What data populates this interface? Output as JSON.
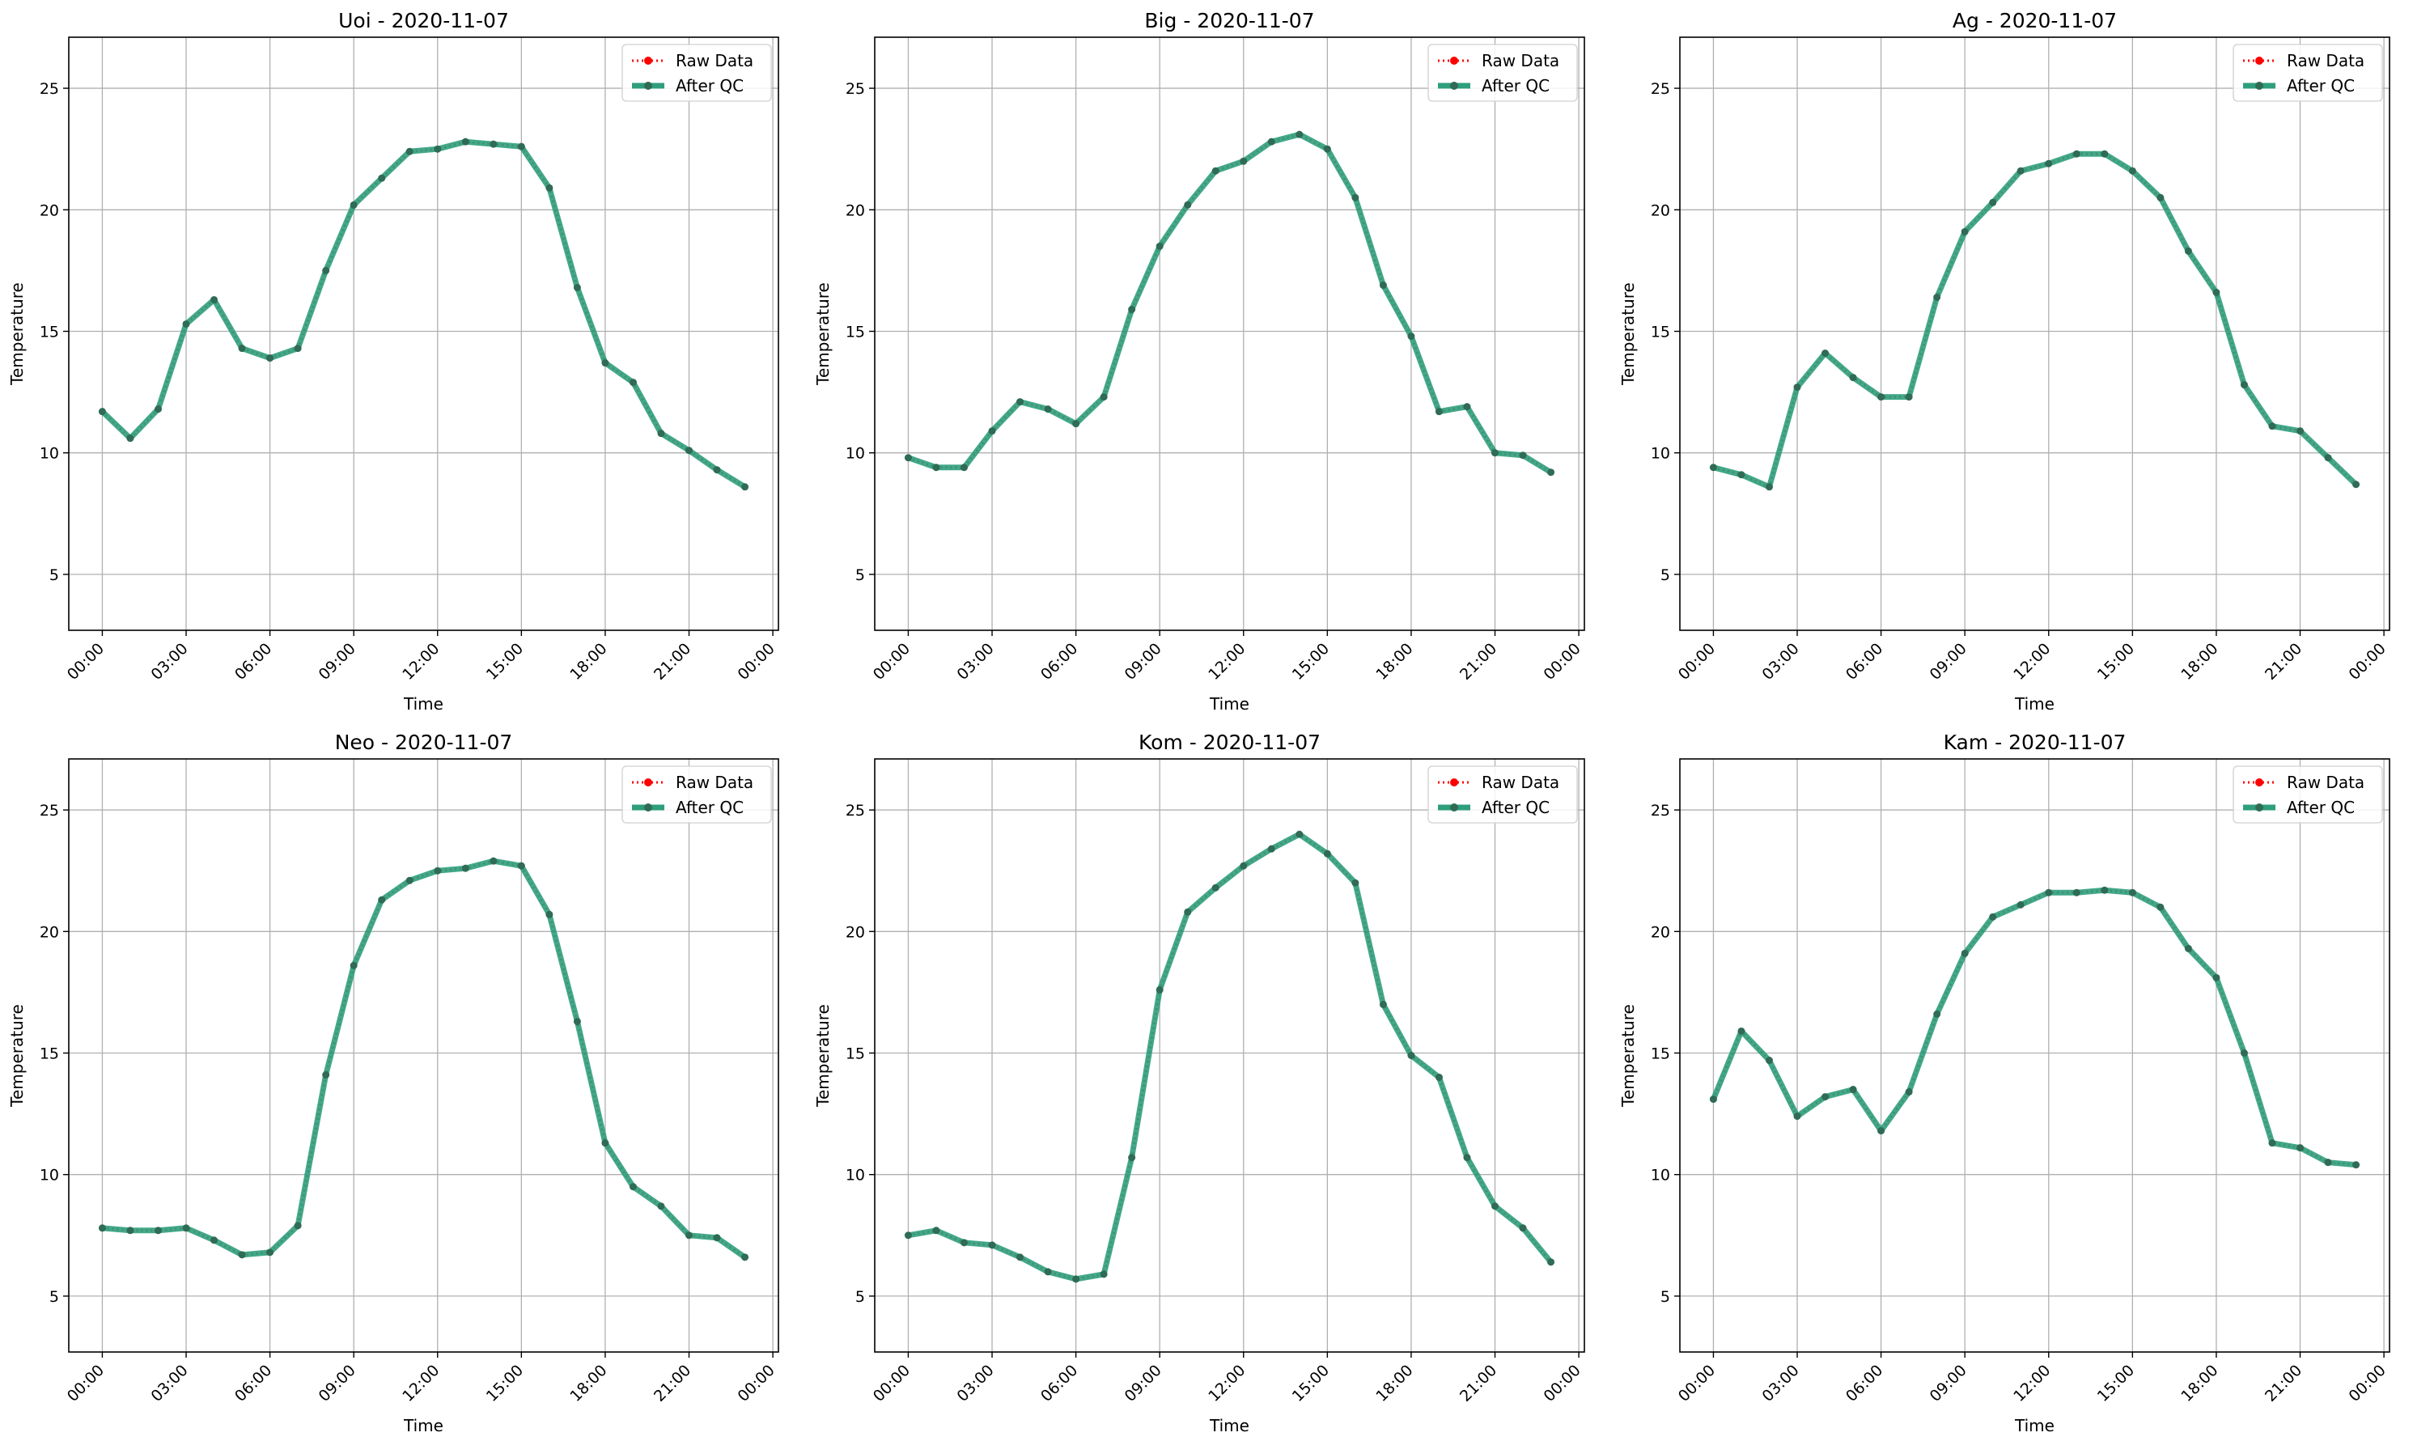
{
  "figure": {
    "date": "2020-11-07"
  },
  "colors": {
    "raw": "#ff0000",
    "qc": "#2e9e7c",
    "qc_dot": "#2f6b55",
    "grid": "#b0b0b0",
    "axis": "#000000"
  },
  "chart_data": [
    {
      "type": "line",
      "title": "Uoi - 2020-11-07",
      "xlabel": "Time",
      "ylabel": "Temperature",
      "x_ticks": [
        "00:00",
        "03:00",
        "06:00",
        "09:00",
        "12:00",
        "15:00",
        "18:00",
        "21:00",
        "00:00"
      ],
      "x_tick_hours": [
        0,
        3,
        6,
        9,
        12,
        15,
        18,
        21,
        24
      ],
      "xlim_hours": [
        -1.2,
        24.2
      ],
      "y_ticks": [
        5,
        10,
        15,
        20,
        25
      ],
      "ylim": [
        2.7,
        27.1
      ],
      "grid": true,
      "legend": {
        "placement": "top-right",
        "entries": [
          "Raw Data",
          "After QC"
        ]
      },
      "x_hours": [
        0,
        1,
        2,
        3,
        4,
        5,
        6,
        7,
        8,
        9,
        10,
        11,
        12,
        13,
        14,
        15,
        16,
        17,
        18,
        19,
        20,
        21,
        22,
        23
      ],
      "series": [
        {
          "name": "Raw Data",
          "values": [
            11.7,
            10.6,
            11.8,
            15.3,
            16.3,
            14.3,
            13.9,
            14.3,
            17.5,
            20.2,
            21.3,
            22.4,
            22.5,
            22.8,
            22.7,
            22.6,
            20.9,
            16.8,
            13.7,
            12.9,
            10.8,
            10.1,
            9.3,
            8.6
          ]
        },
        {
          "name": "After QC",
          "values": [
            11.7,
            10.6,
            11.8,
            15.3,
            16.3,
            14.3,
            13.9,
            14.3,
            17.5,
            20.2,
            21.3,
            22.4,
            22.5,
            22.8,
            22.7,
            22.6,
            20.9,
            16.8,
            13.7,
            12.9,
            10.8,
            10.1,
            9.3,
            8.6
          ]
        }
      ]
    },
    {
      "type": "line",
      "title": "Big - 2020-11-07",
      "xlabel": "Time",
      "ylabel": "Temperature",
      "x_ticks": [
        "00:00",
        "03:00",
        "06:00",
        "09:00",
        "12:00",
        "15:00",
        "18:00",
        "21:00",
        "00:00"
      ],
      "x_tick_hours": [
        0,
        3,
        6,
        9,
        12,
        15,
        18,
        21,
        24
      ],
      "xlim_hours": [
        -1.2,
        24.2
      ],
      "y_ticks": [
        5,
        10,
        15,
        20,
        25
      ],
      "ylim": [
        2.7,
        27.1
      ],
      "grid": true,
      "legend": {
        "placement": "top-right",
        "entries": [
          "Raw Data",
          "After QC"
        ]
      },
      "x_hours": [
        0,
        1,
        2,
        3,
        4,
        5,
        6,
        7,
        8,
        9,
        10,
        11,
        12,
        13,
        14,
        15,
        16,
        17,
        18,
        19,
        20,
        21,
        22,
        23
      ],
      "series": [
        {
          "name": "Raw Data",
          "values": [
            9.8,
            9.4,
            9.4,
            10.9,
            12.1,
            11.8,
            11.2,
            12.3,
            15.9,
            18.5,
            20.2,
            21.6,
            22.0,
            22.8,
            23.1,
            22.5,
            20.5,
            16.9,
            14.8,
            11.7,
            11.9,
            10.0,
            9.9,
            9.2
          ]
        },
        {
          "name": "After QC",
          "values": [
            9.8,
            9.4,
            9.4,
            10.9,
            12.1,
            11.8,
            11.2,
            12.3,
            15.9,
            18.5,
            20.2,
            21.6,
            22.0,
            22.8,
            23.1,
            22.5,
            20.5,
            16.9,
            14.8,
            11.7,
            11.9,
            10.0,
            9.9,
            9.2
          ]
        }
      ]
    },
    {
      "type": "line",
      "title": "Ag - 2020-11-07",
      "xlabel": "Time",
      "ylabel": "Temperature",
      "x_ticks": [
        "00:00",
        "03:00",
        "06:00",
        "09:00",
        "12:00",
        "15:00",
        "18:00",
        "21:00",
        "00:00"
      ],
      "x_tick_hours": [
        0,
        3,
        6,
        9,
        12,
        15,
        18,
        21,
        24
      ],
      "xlim_hours": [
        -1.2,
        24.2
      ],
      "y_ticks": [
        5,
        10,
        15,
        20,
        25
      ],
      "ylim": [
        2.7,
        27.1
      ],
      "grid": true,
      "legend": {
        "placement": "top-right",
        "entries": [
          "Raw Data",
          "After QC"
        ]
      },
      "x_hours": [
        0,
        1,
        2,
        3,
        4,
        5,
        6,
        7,
        8,
        9,
        10,
        11,
        12,
        13,
        14,
        15,
        16,
        17,
        18,
        19,
        20,
        21,
        22,
        23
      ],
      "series": [
        {
          "name": "Raw Data",
          "values": [
            9.4,
            9.1,
            8.6,
            12.7,
            14.1,
            13.1,
            12.3,
            12.3,
            16.4,
            19.1,
            20.3,
            21.6,
            21.9,
            22.3,
            22.3,
            21.6,
            20.5,
            18.3,
            16.6,
            12.8,
            11.1,
            10.9,
            9.8,
            8.7
          ]
        },
        {
          "name": "After QC",
          "values": [
            9.4,
            9.1,
            8.6,
            12.7,
            14.1,
            13.1,
            12.3,
            12.3,
            16.4,
            19.1,
            20.3,
            21.6,
            21.9,
            22.3,
            22.3,
            21.6,
            20.5,
            18.3,
            16.6,
            12.8,
            11.1,
            10.9,
            9.8,
            8.7
          ]
        }
      ]
    },
    {
      "type": "line",
      "title": "Neo - 2020-11-07",
      "xlabel": "Time",
      "ylabel": "Temperature",
      "x_ticks": [
        "00:00",
        "03:00",
        "06:00",
        "09:00",
        "12:00",
        "15:00",
        "18:00",
        "21:00",
        "00:00"
      ],
      "x_tick_hours": [
        0,
        3,
        6,
        9,
        12,
        15,
        18,
        21,
        24
      ],
      "xlim_hours": [
        -1.2,
        24.2
      ],
      "y_ticks": [
        5,
        10,
        15,
        20,
        25
      ],
      "ylim": [
        2.7,
        27.1
      ],
      "grid": true,
      "legend": {
        "placement": "top-right",
        "entries": [
          "Raw Data",
          "After QC"
        ]
      },
      "x_hours": [
        0,
        1,
        2,
        3,
        4,
        5,
        6,
        7,
        8,
        9,
        10,
        11,
        12,
        13,
        14,
        15,
        16,
        17,
        18,
        19,
        20,
        21,
        22,
        23
      ],
      "series": [
        {
          "name": "Raw Data",
          "values": [
            7.8,
            7.7,
            7.7,
            7.8,
            7.3,
            6.7,
            6.8,
            7.9,
            14.1,
            18.6,
            21.3,
            22.1,
            22.5,
            22.6,
            22.9,
            22.7,
            20.7,
            16.3,
            11.3,
            9.5,
            8.7,
            7.5,
            7.4,
            6.6
          ]
        },
        {
          "name": "After QC",
          "values": [
            7.8,
            7.7,
            7.7,
            7.8,
            7.3,
            6.7,
            6.8,
            7.9,
            14.1,
            18.6,
            21.3,
            22.1,
            22.5,
            22.6,
            22.9,
            22.7,
            20.7,
            16.3,
            11.3,
            9.5,
            8.7,
            7.5,
            7.4,
            6.6
          ]
        }
      ]
    },
    {
      "type": "line",
      "title": "Kom - 2020-11-07",
      "xlabel": "Time",
      "ylabel": "Temperature",
      "x_ticks": [
        "00:00",
        "03:00",
        "06:00",
        "09:00",
        "12:00",
        "15:00",
        "18:00",
        "21:00",
        "00:00"
      ],
      "x_tick_hours": [
        0,
        3,
        6,
        9,
        12,
        15,
        18,
        21,
        24
      ],
      "xlim_hours": [
        -1.2,
        24.2
      ],
      "y_ticks": [
        5,
        10,
        15,
        20,
        25
      ],
      "ylim": [
        2.7,
        27.1
      ],
      "grid": true,
      "legend": {
        "placement": "top-right",
        "entries": [
          "Raw Data",
          "After QC"
        ]
      },
      "x_hours": [
        0,
        1,
        2,
        3,
        4,
        5,
        6,
        7,
        8,
        9,
        10,
        11,
        12,
        13,
        14,
        15,
        16,
        17,
        18,
        19,
        20,
        21,
        22,
        23
      ],
      "series": [
        {
          "name": "Raw Data",
          "values": [
            7.5,
            7.7,
            7.2,
            7.1,
            6.6,
            6.0,
            5.7,
            5.9,
            10.7,
            17.6,
            20.8,
            21.8,
            22.7,
            23.4,
            24.0,
            23.2,
            22.0,
            17.0,
            14.9,
            14.0,
            10.7,
            8.7,
            7.8,
            6.4
          ]
        },
        {
          "name": "After QC",
          "values": [
            7.5,
            7.7,
            7.2,
            7.1,
            6.6,
            6.0,
            5.7,
            5.9,
            10.7,
            17.6,
            20.8,
            21.8,
            22.7,
            23.4,
            24.0,
            23.2,
            22.0,
            17.0,
            14.9,
            14.0,
            10.7,
            8.7,
            7.8,
            6.4
          ]
        }
      ]
    },
    {
      "type": "line",
      "title": "Kam - 2020-11-07",
      "xlabel": "Time",
      "ylabel": "Temperature",
      "x_ticks": [
        "00:00",
        "03:00",
        "06:00",
        "09:00",
        "12:00",
        "15:00",
        "18:00",
        "21:00",
        "00:00"
      ],
      "x_tick_hours": [
        0,
        3,
        6,
        9,
        12,
        15,
        18,
        21,
        24
      ],
      "xlim_hours": [
        -1.2,
        24.2
      ],
      "y_ticks": [
        5,
        10,
        15,
        20,
        25
      ],
      "ylim": [
        2.7,
        27.1
      ],
      "grid": true,
      "legend": {
        "placement": "top-right",
        "entries": [
          "Raw Data",
          "After QC"
        ]
      },
      "x_hours": [
        0,
        1,
        2,
        3,
        4,
        5,
        6,
        7,
        8,
        9,
        10,
        11,
        12,
        13,
        14,
        15,
        16,
        17,
        18,
        19,
        20,
        21,
        22,
        23
      ],
      "series": [
        {
          "name": "Raw Data",
          "values": [
            13.1,
            15.9,
            14.7,
            12.4,
            13.2,
            13.5,
            11.8,
            13.4,
            16.6,
            19.1,
            20.6,
            21.1,
            21.6,
            21.6,
            21.7,
            21.6,
            21.0,
            19.3,
            18.1,
            15.0,
            11.3,
            11.1,
            10.5,
            10.4
          ]
        },
        {
          "name": "After QC",
          "values": [
            13.1,
            15.9,
            14.7,
            12.4,
            13.2,
            13.5,
            11.8,
            13.4,
            16.6,
            19.1,
            20.6,
            21.1,
            21.6,
            21.6,
            21.7,
            21.6,
            21.0,
            19.3,
            18.1,
            15.0,
            11.3,
            11.1,
            10.5,
            10.4
          ]
        }
      ]
    }
  ]
}
